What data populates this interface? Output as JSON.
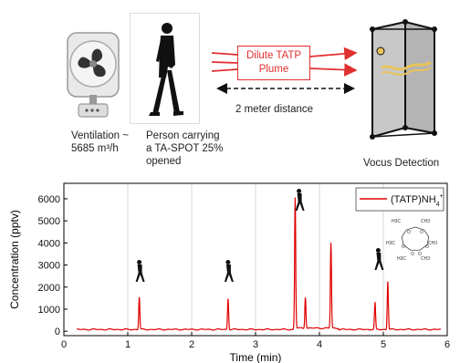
{
  "schematic": {
    "fan_caption_line1": "Ventilation ~",
    "fan_caption_line2": "5685 m³/h",
    "person_caption_line1": "Person carrying",
    "person_caption_line2": "a TA-SPOT 25%",
    "person_caption_line3": "opened",
    "plume_line1": "Dilute TATP",
    "plume_line2": "Plume",
    "distance_label": "2 meter distance",
    "detector_caption": "Vocus Detection",
    "plume_color": "#e03030"
  },
  "chart_data": {
    "type": "line",
    "xlabel": "Time (min)",
    "ylabel": "Concentration (pptv)",
    "xlim": [
      0,
      6
    ],
    "ylim": [
      -200,
      6700
    ],
    "xticks": [
      0,
      1,
      2,
      3,
      4,
      5,
      6
    ],
    "yticks": [
      0,
      1000,
      2000,
      3000,
      4000,
      5000,
      6000
    ],
    "grid": "vertical lines at walk-past events",
    "legend_placement": "top-right",
    "series": [
      {
        "name": "(TATP)NH4+",
        "color": "#e00000",
        "baseline": 80,
        "peaks": [
          {
            "x": 1.18,
            "y": 1550
          },
          {
            "x": 2.57,
            "y": 1500
          },
          {
            "x": 3.62,
            "y": 6000
          },
          {
            "x": 3.78,
            "y": 1500
          },
          {
            "x": 4.18,
            "y": 3950
          },
          {
            "x": 4.87,
            "y": 1300
          },
          {
            "x": 5.07,
            "y": 2300
          }
        ]
      }
    ],
    "event_lines_x": [
      1.0,
      2.0,
      3.0,
      4.0,
      5.0
    ],
    "walker_icons_x": [
      1.18,
      2.57,
      3.68,
      4.92
    ],
    "molecule_atom_labels": [
      "H3C",
      "CH3",
      "H3C",
      "CH3",
      "H3C",
      "CH3",
      "O",
      "O",
      "O",
      "O",
      "O",
      "O"
    ]
  }
}
